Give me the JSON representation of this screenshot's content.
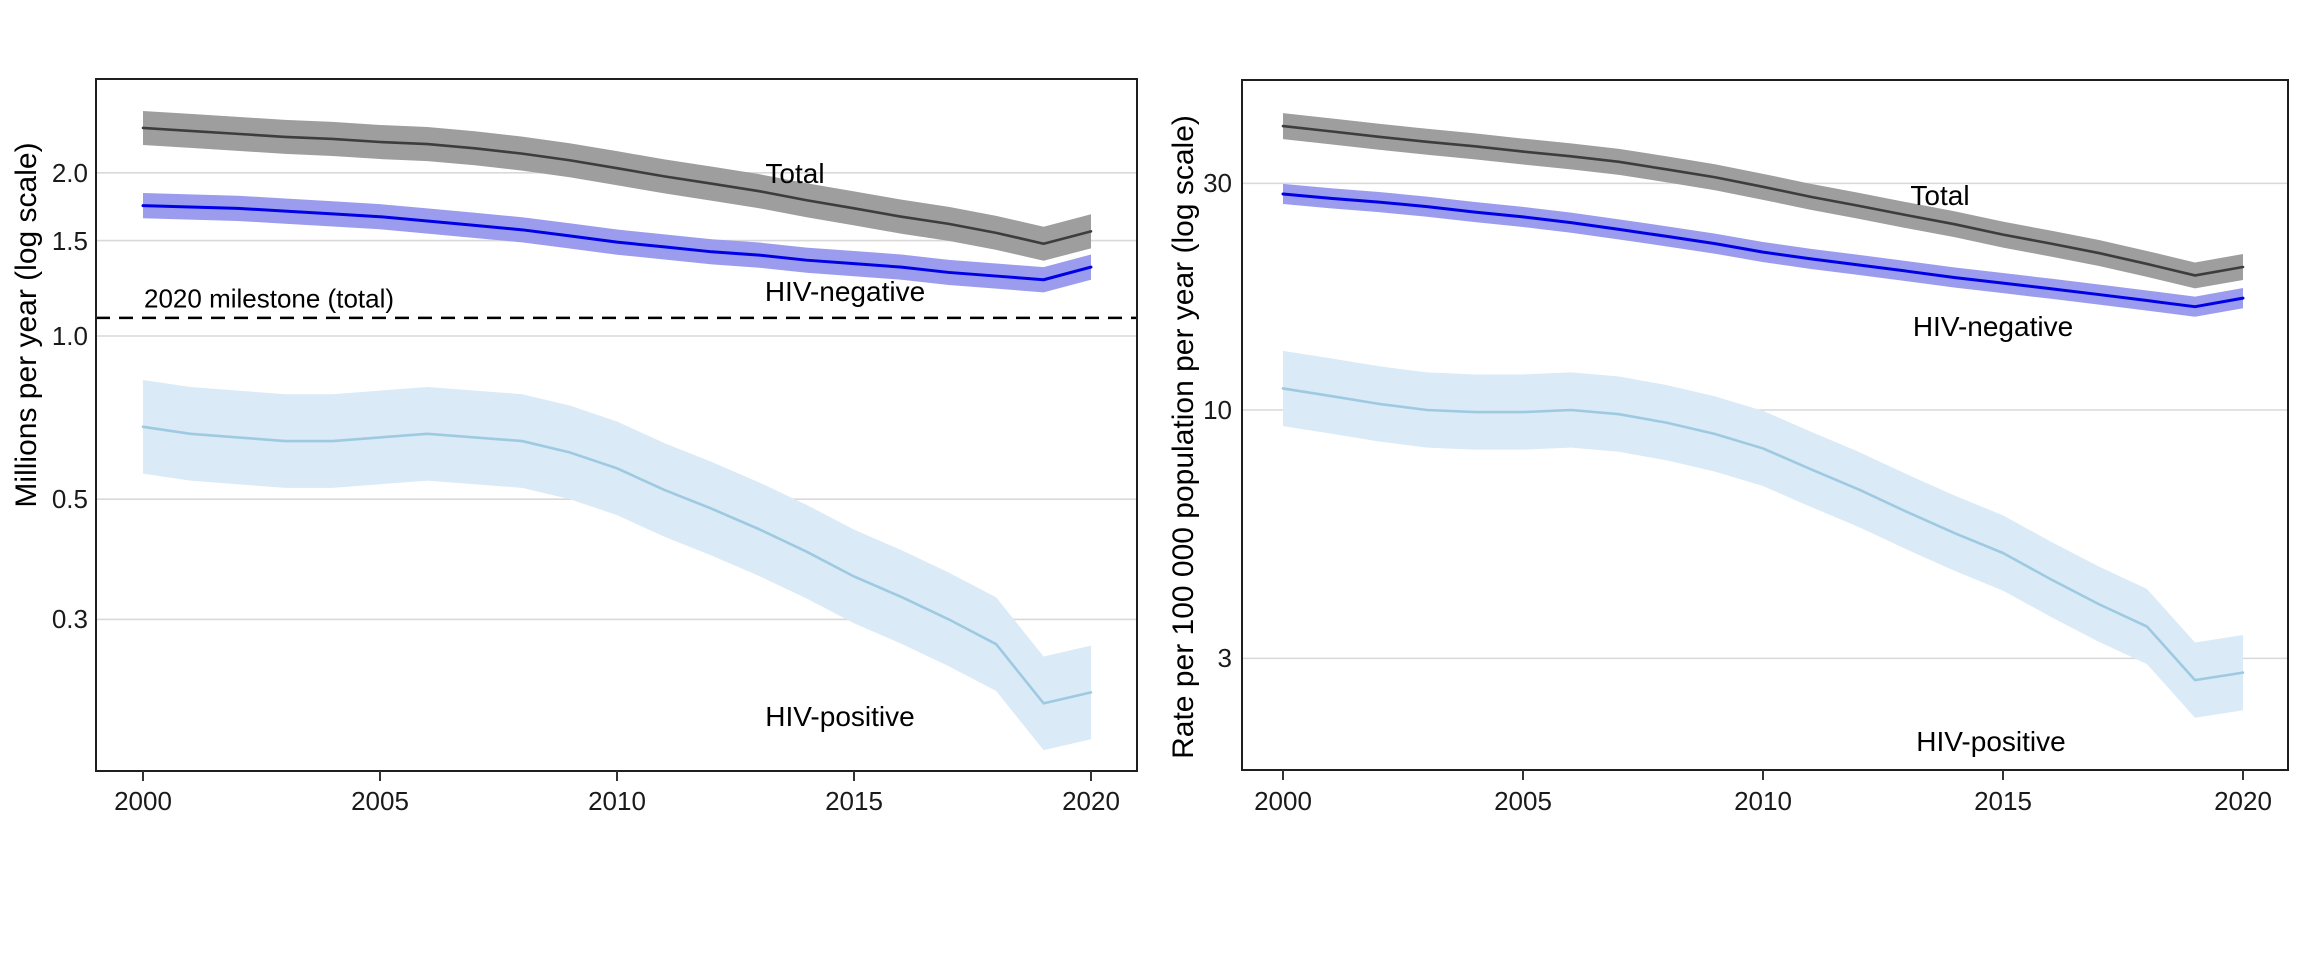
{
  "colors": {
    "background": "#ffffff",
    "grid_line": "#d9d9d9",
    "panel_border": "#1f1f1f",
    "milestone_line": "#000000",
    "text": "#000000",
    "total_line": "#3d3d3d",
    "total_band": "#9e9e9e",
    "hiv_negative_line": "#0000e6",
    "hiv_negative_band": "#9c9cee",
    "hiv_positive_line": "#9ecae1",
    "hiv_positive_band": "#daeaf7"
  },
  "chart_data": [
    {
      "type": "line",
      "panel": "deaths",
      "y_axis_title": "Millions per year (log scale)",
      "x_ticks": [
        "2000",
        "2005",
        "2010",
        "2015",
        "2020"
      ],
      "y_ticks": [
        {
          "label": "2.0",
          "value": 2.0
        },
        {
          "label": "1.5",
          "value": 1.5
        },
        {
          "label": "1.0",
          "value": 1.0
        },
        {
          "label": "0.5",
          "value": 0.5
        },
        {
          "label": "0.3",
          "value": 0.3
        }
      ],
      "years": [
        2000,
        2001,
        2002,
        2003,
        2004,
        2005,
        2006,
        2007,
        2008,
        2009,
        2010,
        2011,
        2012,
        2013,
        2014,
        2015,
        2016,
        2017,
        2018,
        2019,
        2020
      ],
      "milestone": {
        "label": "2020 milestone (total)",
        "value": 1.08
      },
      "grid": true,
      "legend_position": "labels-on-chart",
      "series": [
        {
          "name": "total",
          "label": "Total",
          "line_color": "#3d3d3d",
          "band_color": "#9e9e9e",
          "band_factor": 1.075,
          "values": [
            2.42,
            2.39,
            2.36,
            2.33,
            2.31,
            2.28,
            2.26,
            2.22,
            2.17,
            2.11,
            2.04,
            1.97,
            1.91,
            1.85,
            1.78,
            1.72,
            1.66,
            1.61,
            1.55,
            1.48,
            1.56
          ]
        },
        {
          "name": "hiv-negative",
          "label": "HIV-negative",
          "line_color": "#0000e6",
          "band_color": "#9c9cee",
          "band_factor": 1.055,
          "values": [
            1.74,
            1.73,
            1.72,
            1.7,
            1.68,
            1.66,
            1.63,
            1.6,
            1.57,
            1.53,
            1.49,
            1.46,
            1.43,
            1.41,
            1.38,
            1.36,
            1.34,
            1.31,
            1.29,
            1.27,
            1.34
          ]
        },
        {
          "name": "hiv-positive",
          "label": "HIV-positive",
          "line_color": "#9ecae1",
          "band_color": "#daeaf7",
          "band_factor": 1.22,
          "values": [
            0.68,
            0.66,
            0.65,
            0.64,
            0.64,
            0.65,
            0.66,
            0.65,
            0.64,
            0.61,
            0.57,
            0.52,
            0.48,
            0.44,
            0.4,
            0.36,
            0.33,
            0.3,
            0.27,
            0.21,
            0.22
          ]
        }
      ]
    },
    {
      "type": "line",
      "panel": "rate",
      "y_axis_title": "Rate per 100 000 population per year (log scale)",
      "x_ticks": [
        "2000",
        "2005",
        "2010",
        "2015",
        "2020"
      ],
      "y_ticks": [
        {
          "label": "30",
          "value": 30
        },
        {
          "label": "10",
          "value": 10
        },
        {
          "label": "3",
          "value": 3
        }
      ],
      "years": [
        2000,
        2001,
        2002,
        2003,
        2004,
        2005,
        2006,
        2007,
        2008,
        2009,
        2010,
        2011,
        2012,
        2013,
        2014,
        2015,
        2016,
        2017,
        2018,
        2019,
        2020
      ],
      "milestone": null,
      "grid": true,
      "legend_position": "labels-on-chart",
      "series": [
        {
          "name": "total",
          "label": "Total",
          "line_color": "#3d3d3d",
          "band_color": "#9e9e9e",
          "band_factor": 1.065,
          "values": [
            39.6,
            38.6,
            37.6,
            36.7,
            35.9,
            35.0,
            34.2,
            33.3,
            32.1,
            30.9,
            29.5,
            28.1,
            26.9,
            25.7,
            24.6,
            23.4,
            22.4,
            21.4,
            20.3,
            19.2,
            20.0
          ]
        },
        {
          "name": "hiv-negative",
          "label": "HIV-negative",
          "line_color": "#0000e6",
          "band_color": "#9c9cee",
          "band_factor": 1.05,
          "values": [
            28.5,
            27.9,
            27.4,
            26.8,
            26.1,
            25.5,
            24.8,
            24.0,
            23.2,
            22.4,
            21.5,
            20.8,
            20.2,
            19.6,
            19.0,
            18.5,
            18.0,
            17.5,
            17.0,
            16.5,
            17.2
          ]
        },
        {
          "name": "hiv-positive",
          "label": "HIV-positive",
          "line_color": "#9ecae1",
          "band_color": "#daeaf7",
          "band_factor": 1.2,
          "values": [
            11.1,
            10.7,
            10.3,
            10.0,
            9.9,
            9.9,
            10.0,
            9.8,
            9.4,
            8.9,
            8.3,
            7.5,
            6.8,
            6.1,
            5.5,
            5.0,
            4.4,
            3.9,
            3.5,
            2.7,
            2.8
          ]
        }
      ]
    }
  ]
}
